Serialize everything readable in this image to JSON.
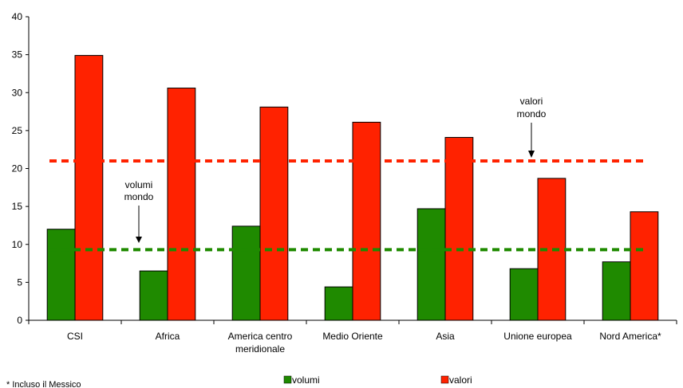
{
  "chart_data": {
    "type": "bar",
    "categories": [
      "CSI",
      "Africa",
      "America  centro|meridionale",
      "Medio Oriente",
      "Asia",
      "Unione europea",
      "Nord America*"
    ],
    "series": [
      {
        "name": "volumi",
        "color": "#1f8a00",
        "values": [
          12.0,
          6.5,
          12.4,
          4.4,
          14.7,
          6.8,
          7.7
        ]
      },
      {
        "name": "valori",
        "color": "#ff2200",
        "values": [
          34.9,
          30.6,
          28.1,
          26.1,
          24.1,
          18.7,
          14.3
        ]
      }
    ],
    "ylim": [
      0,
      40
    ],
    "yticks": [
      "0",
      "5",
      "10",
      "15",
      "20",
      "25",
      "30",
      "35",
      "40"
    ],
    "grid": false,
    "legend_position": "bottom",
    "reference_lines": [
      {
        "name": "volumi mondo",
        "value": 9.3,
        "color": "#1f8a00",
        "style": "dashed"
      },
      {
        "name": "valori mondo",
        "value": 21.0,
        "color": "#ff2200",
        "style": "dashed"
      }
    ],
    "annotations": {
      "volumi_mondo": [
        "volumi",
        "mondo"
      ],
      "valori_mondo": [
        "valori",
        "mondo"
      ]
    },
    "footnote": "* Incluso il Messico"
  }
}
